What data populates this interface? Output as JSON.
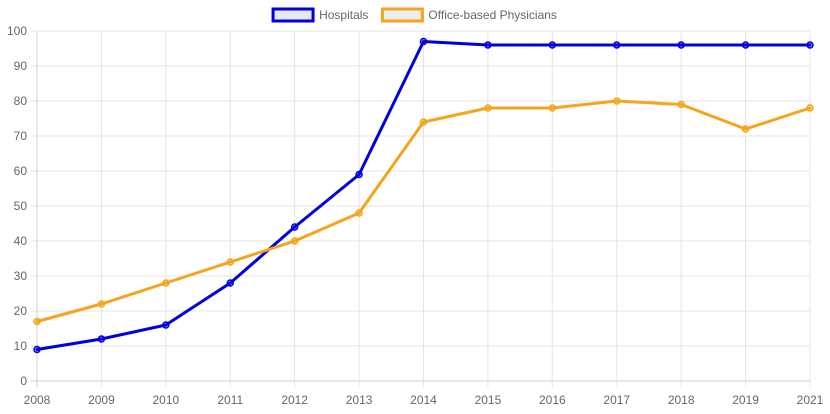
{
  "chart_data": {
    "type": "line",
    "x": [
      "2008",
      "2009",
      "2010",
      "2011",
      "2012",
      "2013",
      "2014",
      "2015",
      "2016",
      "2017",
      "2018",
      "2019",
      "2021"
    ],
    "series": [
      {
        "name": "Hospitals",
        "color": "#0000e0",
        "fill": "#e8e8f2",
        "values": [
          9,
          12,
          16,
          28,
          44,
          59,
          97,
          96,
          96,
          96,
          96,
          96,
          96
        ]
      },
      {
        "name": "Office-based Physicians",
        "color": "#f5a51b",
        "fill": "#eeeeee",
        "values": [
          17,
          22,
          28,
          34,
          40,
          48,
          74,
          78,
          78,
          80,
          79,
          72,
          78
        ]
      }
    ],
    "ylim": [
      0,
      100
    ],
    "yticks": [
      0,
      10,
      20,
      30,
      40,
      50,
      60,
      70,
      80,
      90,
      100
    ],
    "grid": true,
    "legend_position": "top-center"
  }
}
